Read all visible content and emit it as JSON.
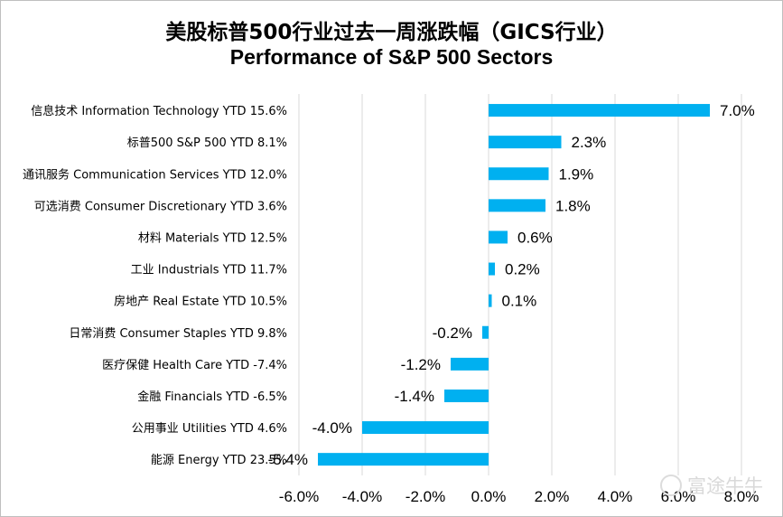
{
  "chart_data": {
    "type": "bar",
    "orientation": "horizontal",
    "title": "美股标普500行业过去一周涨跌幅（GICS行业）",
    "subtitle": "Performance of S&P 500 Sectors",
    "categories": [
      "信息技术 Information Technology YTD 15.6%",
      "标普500 S&P 500 YTD 8.1%",
      "通讯服务 Communication Services YTD 12.0%",
      "可选消费 Consumer Discretionary YTD 3.6%",
      "材料 Materials YTD 12.5%",
      "工业 Industrials YTD 11.7%",
      "房地产 Real Estate YTD 10.5%",
      "日常消费 Consumer Staples YTD 9.8%",
      "医疗保健 Health Care YTD -7.4%",
      "金融 Financials YTD -6.5%",
      "公用事业 Utilities YTD 4.6%",
      "能源 Energy YTD 23.5%"
    ],
    "values": [
      7.0,
      2.3,
      1.9,
      1.8,
      0.6,
      0.2,
      0.1,
      -0.2,
      -1.2,
      -1.4,
      -4.0,
      -5.4
    ],
    "value_labels": [
      "7.0%",
      "2.3%",
      "1.9%",
      "1.8%",
      "0.6%",
      "0.2%",
      "0.1%",
      "-0.2%",
      "-1.2%",
      "-1.4%",
      "-4.0%",
      "-5.4%"
    ],
    "xlim": [
      -6.0,
      8.0
    ],
    "xticks": [
      -6,
      -4,
      -2,
      0,
      2,
      4,
      6,
      8
    ],
    "xtick_labels": [
      "-6.0%",
      "-4.0%",
      "-2.0%",
      "0.0%",
      "2.0%",
      "4.0%",
      "6.0%",
      "8.0%"
    ],
    "grid": "vertical",
    "bar_color": "#00b0f0",
    "grid_color": "#d9d9d9"
  },
  "watermark": {
    "text": "富途牛牛"
  }
}
